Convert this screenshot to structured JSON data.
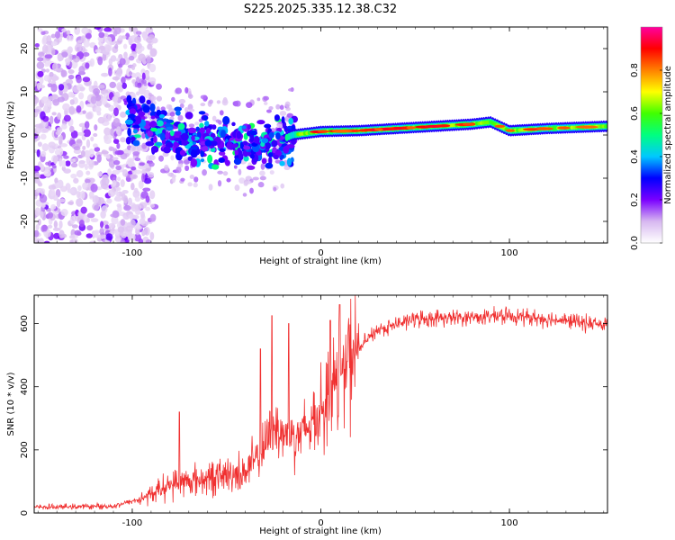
{
  "title": "S225.2025.335.12.38.C32",
  "chart_data": [
    {
      "type": "heatmap",
      "xlabel": "Height of straight line (km)",
      "ylabel": "Frequency (Hz)",
      "xlim": [
        -152,
        152
      ],
      "ylim": [
        -25,
        25
      ],
      "xticks": [
        -100,
        0,
        100
      ],
      "xtick_labels": [
        "-100",
        "0",
        "100"
      ],
      "yticks": [
        -20,
        -10,
        0,
        10,
        20
      ],
      "ytick_labels": [
        "-20",
        "-10",
        "0",
        "10",
        "20"
      ],
      "colorbar": {
        "label": "Normalized spectral amplitude",
        "range": [
          0,
          1
        ],
        "ticks": [
          0.0,
          0.2,
          0.4,
          0.6,
          0.8
        ],
        "tick_labels": [
          "0.0",
          "0.2",
          "0.4",
          "0.6",
          "0.8"
        ],
        "colors": [
          "#ffffff",
          "#d7b8f0",
          "#7a00ff",
          "#0000ff",
          "#00c8ff",
          "#00ff80",
          "#40ff00",
          "#ffff00",
          "#ff8000",
          "#ff0000",
          "#ff00a0"
        ]
      },
      "carrier": {
        "x": [
          -100,
          -80,
          -60,
          -40,
          -25,
          -15,
          0,
          20,
          40,
          60,
          80,
          90,
          100,
          120,
          150
        ],
        "frequency": [
          3,
          0,
          -1,
          -3,
          -2,
          0,
          0.8,
          1,
          1.5,
          2,
          2.5,
          3,
          1,
          1.5,
          2
        ]
      },
      "noise": {
        "dense_region_x": [
          -152,
          -100
        ],
        "frequency_spread": [
          -25,
          25
        ]
      }
    },
    {
      "type": "line",
      "xlabel": "Height of straight line (km)",
      "ylabel": "SNR (10 * v/v)",
      "color": "#f03030",
      "xlim": [
        -152,
        152
      ],
      "ylim": [
        0,
        690
      ],
      "xticks": [
        -100,
        0,
        100
      ],
      "xtick_labels": [
        "-100",
        "0",
        "100"
      ],
      "yticks": [
        0,
        200,
        400,
        600
      ],
      "ytick_labels": [
        "0",
        "200",
        "400",
        "600"
      ],
      "trend": {
        "x": [
          -152,
          -110,
          -95,
          -80,
          -60,
          -40,
          -30,
          -25,
          -20,
          -10,
          0,
          10,
          20,
          30,
          50,
          80,
          100,
          120,
          152
        ],
        "y": [
          18,
          22,
          45,
          90,
          110,
          130,
          200,
          280,
          250,
          250,
          330,
          430,
          520,
          580,
          615,
          620,
          625,
          615,
          595
        ]
      },
      "spikes": [
        {
          "x": -75,
          "y": 320
        },
        {
          "x": -32,
          "y": 520
        },
        {
          "x": -26,
          "y": 625
        },
        {
          "x": -17,
          "y": 600
        },
        {
          "x": 5,
          "y": 610
        },
        {
          "x": 10,
          "y": 660
        }
      ]
    }
  ]
}
